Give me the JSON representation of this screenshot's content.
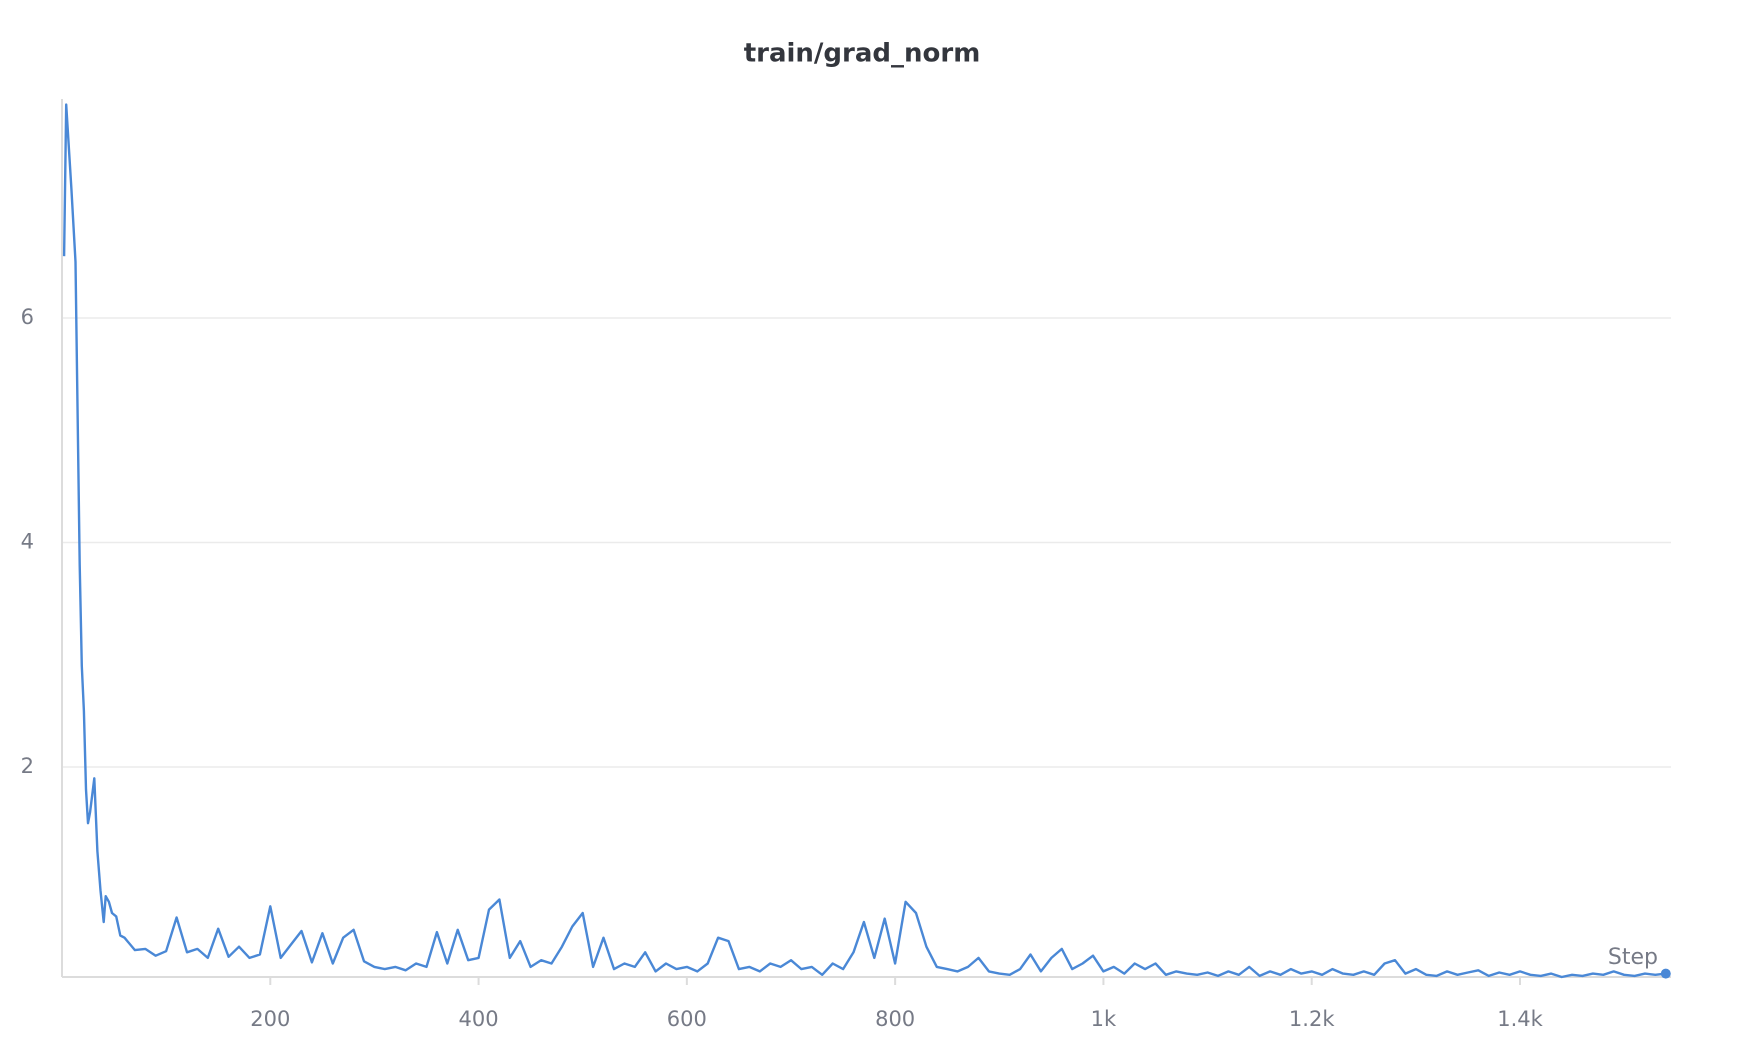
{
  "chart_data": {
    "type": "line",
    "title": "train/grad_norm",
    "x_label": "Step",
    "x": [
      2,
      4,
      9,
      13,
      17,
      19,
      21,
      23,
      25,
      27,
      31,
      34,
      37,
      40,
      42,
      45,
      48,
      52,
      56,
      60,
      70,
      80,
      90,
      100,
      110,
      120,
      130,
      140,
      150,
      160,
      170,
      180,
      190,
      200,
      210,
      220,
      230,
      240,
      250,
      260,
      270,
      280,
      290,
      300,
      310,
      320,
      330,
      340,
      350,
      360,
      370,
      380,
      390,
      400,
      410,
      420,
      430,
      440,
      450,
      460,
      470,
      480,
      490,
      500,
      510,
      520,
      530,
      540,
      550,
      560,
      570,
      580,
      590,
      600,
      610,
      620,
      630,
      640,
      650,
      660,
      670,
      680,
      690,
      700,
      710,
      720,
      730,
      740,
      750,
      760,
      770,
      780,
      790,
      800,
      810,
      820,
      830,
      840,
      850,
      860,
      870,
      880,
      890,
      900,
      910,
      920,
      930,
      940,
      950,
      960,
      970,
      980,
      990,
      1000,
      1010,
      1020,
      1030,
      1040,
      1050,
      1060,
      1070,
      1080,
      1090,
      1100,
      1110,
      1120,
      1130,
      1140,
      1150,
      1160,
      1170,
      1180,
      1190,
      1200,
      1210,
      1220,
      1230,
      1240,
      1250,
      1260,
      1270,
      1280,
      1290,
      1300,
      1310,
      1320,
      1330,
      1340,
      1350,
      1360,
      1370,
      1380,
      1390,
      1400,
      1410,
      1420,
      1430,
      1440,
      1450,
      1460,
      1470,
      1480,
      1490,
      1500,
      1510,
      1520,
      1530,
      1540
    ],
    "values": [
      6.55,
      7.9,
      7.15,
      6.5,
      3.8,
      2.9,
      2.5,
      1.8,
      1.5,
      1.6,
      1.9,
      1.25,
      0.9,
      0.62,
      0.85,
      0.8,
      0.7,
      0.67,
      0.5,
      0.48,
      0.37,
      0.38,
      0.32,
      0.36,
      0.66,
      0.35,
      0.38,
      0.3,
      0.56,
      0.31,
      0.4,
      0.3,
      0.33,
      0.76,
      0.3,
      0.42,
      0.54,
      0.26,
      0.52,
      0.25,
      0.48,
      0.55,
      0.27,
      0.22,
      0.2,
      0.22,
      0.19,
      0.25,
      0.22,
      0.53,
      0.25,
      0.55,
      0.28,
      0.3,
      0.73,
      0.82,
      0.3,
      0.45,
      0.22,
      0.28,
      0.25,
      0.4,
      0.58,
      0.7,
      0.22,
      0.48,
      0.2,
      0.25,
      0.22,
      0.35,
      0.18,
      0.25,
      0.2,
      0.22,
      0.18,
      0.25,
      0.48,
      0.45,
      0.2,
      0.22,
      0.18,
      0.25,
      0.22,
      0.28,
      0.2,
      0.22,
      0.15,
      0.25,
      0.2,
      0.35,
      0.62,
      0.3,
      0.65,
      0.25,
      0.8,
      0.7,
      0.4,
      0.22,
      0.2,
      0.18,
      0.22,
      0.3,
      0.18,
      0.16,
      0.15,
      0.2,
      0.33,
      0.18,
      0.3,
      0.38,
      0.2,
      0.25,
      0.32,
      0.18,
      0.22,
      0.16,
      0.25,
      0.2,
      0.25,
      0.15,
      0.18,
      0.16,
      0.15,
      0.17,
      0.14,
      0.18,
      0.15,
      0.22,
      0.14,
      0.18,
      0.15,
      0.2,
      0.16,
      0.18,
      0.15,
      0.2,
      0.16,
      0.15,
      0.18,
      0.15,
      0.25,
      0.28,
      0.16,
      0.2,
      0.15,
      0.14,
      0.18,
      0.15,
      0.17,
      0.19,
      0.14,
      0.17,
      0.15,
      0.18,
      0.15,
      0.14,
      0.16,
      0.13,
      0.15,
      0.14,
      0.16,
      0.15,
      0.18,
      0.15,
      0.14,
      0.16,
      0.15,
      0.16
    ],
    "color": "#4a88d6",
    "xlim": [
      0,
      1545
    ],
    "ylim": [
      0.13,
      7.95
    ],
    "xticks": [
      200,
      400,
      600,
      800,
      {
        "value": 1000,
        "label": "1k"
      },
      {
        "value": 1200,
        "label": "1.2k"
      },
      {
        "value": 1400,
        "label": "1.4k"
      }
    ],
    "yticks": [
      2,
      4,
      6
    ],
    "grid": true
  }
}
